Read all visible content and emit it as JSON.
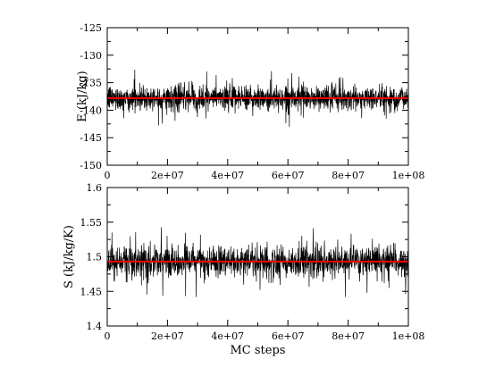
{
  "chart_data": [
    {
      "type": "line",
      "ylabel": "E (kJ/kg)",
      "xlabel": "",
      "xlim": [
        0,
        100000000
      ],
      "ylim": [
        -150,
        -125
      ],
      "xticks": [
        0,
        20000000,
        40000000,
        60000000,
        80000000,
        100000000
      ],
      "xtick_labels": [
        "0",
        "2e+07",
        "4e+07",
        "6e+07",
        "8e+07",
        "1e+08"
      ],
      "yticks": [
        -150,
        -145,
        -140,
        -135,
        -130,
        -125
      ],
      "ytick_labels": [
        "-150",
        "-145",
        "-140",
        "-135",
        "-130",
        "-125"
      ],
      "mean": -137.8,
      "fluctuation_range": [
        -143.5,
        -131
      ],
      "typical_band": [
        -140.5,
        -135.5
      ],
      "series_color": "#000000",
      "mean_color": "#ff0000",
      "grid": false
    },
    {
      "type": "line",
      "ylabel": "S (kJ/kg/K)",
      "xlabel": "MC steps",
      "xlim": [
        0,
        100000000
      ],
      "ylim": [
        1.4,
        1.6
      ],
      "xticks": [
        0,
        20000000,
        40000000,
        60000000,
        80000000,
        100000000
      ],
      "xtick_labels": [
        "0",
        "2e+07",
        "4e+07",
        "6e+07",
        "8e+07",
        "1e+08"
      ],
      "yticks": [
        1.4,
        1.45,
        1.5,
        1.55,
        1.6
      ],
      "ytick_labels": [
        "1.4",
        "1.45",
        "1.5",
        "1.55",
        "1.6"
      ],
      "mean": 1.493,
      "fluctuation_range": [
        1.435,
        1.565
      ],
      "typical_band": [
        1.47,
        1.52
      ],
      "series_color": "#000000",
      "mean_color": "#ff0000",
      "grid": false
    }
  ]
}
